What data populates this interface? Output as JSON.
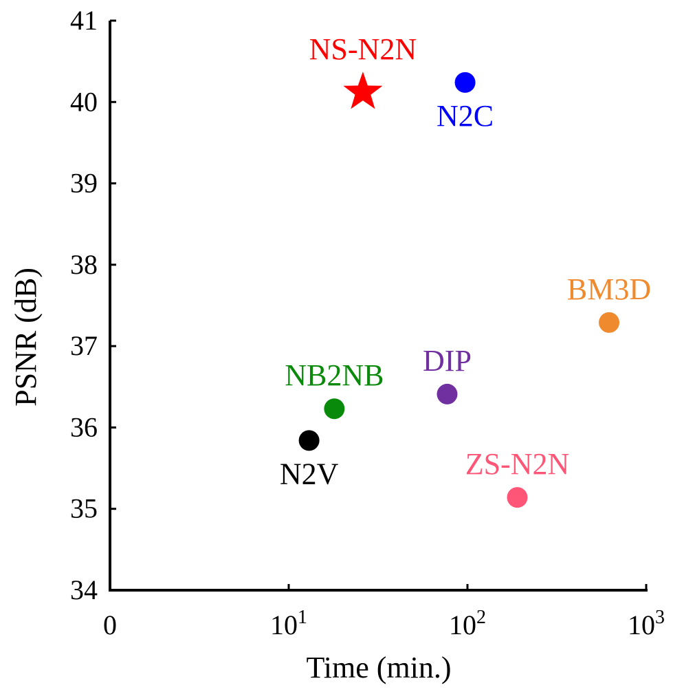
{
  "chart_data": {
    "type": "scatter",
    "title": "",
    "xlabel": "Time (min.)",
    "ylabel": "PSNR (dB)",
    "xscale": "log",
    "ylim": [
      34,
      41
    ],
    "xlim": [
      1,
      1000
    ],
    "yticks": [
      "34",
      "35",
      "36",
      "37",
      "38",
      "39",
      "40",
      "41"
    ],
    "xticks": [
      {
        "base": "0",
        "exp": ""
      },
      {
        "base": "10",
        "exp": "1"
      },
      {
        "base": "10",
        "exp": "2"
      },
      {
        "base": "10",
        "exp": "3"
      }
    ],
    "grid": false,
    "points": [
      {
        "name": "NS-N2N",
        "x": 26,
        "y": 40.12,
        "color": "#ff0000",
        "marker": "star",
        "label_pos": "above"
      },
      {
        "name": "N2C",
        "x": 97,
        "y": 40.24,
        "color": "#0000ff",
        "marker": "circle",
        "label_pos": "below"
      },
      {
        "name": "BM3D",
        "x": 620,
        "y": 37.29,
        "color": "#f08a2e",
        "marker": "circle",
        "label_pos": "above"
      },
      {
        "name": "DIP",
        "x": 77,
        "y": 36.41,
        "color": "#7030a0",
        "marker": "circle",
        "label_pos": "above"
      },
      {
        "name": "NB2NB",
        "x": 18,
        "y": 36.23,
        "color": "#0a8a0a",
        "marker": "circle",
        "label_pos": "above"
      },
      {
        "name": "N2V",
        "x": 13,
        "y": 35.84,
        "color": "#000000",
        "marker": "circle",
        "label_pos": "below"
      },
      {
        "name": "ZS-N2N",
        "x": 190,
        "y": 35.14,
        "color": "#ff5577",
        "marker": "circle",
        "label_pos": "above"
      }
    ]
  }
}
